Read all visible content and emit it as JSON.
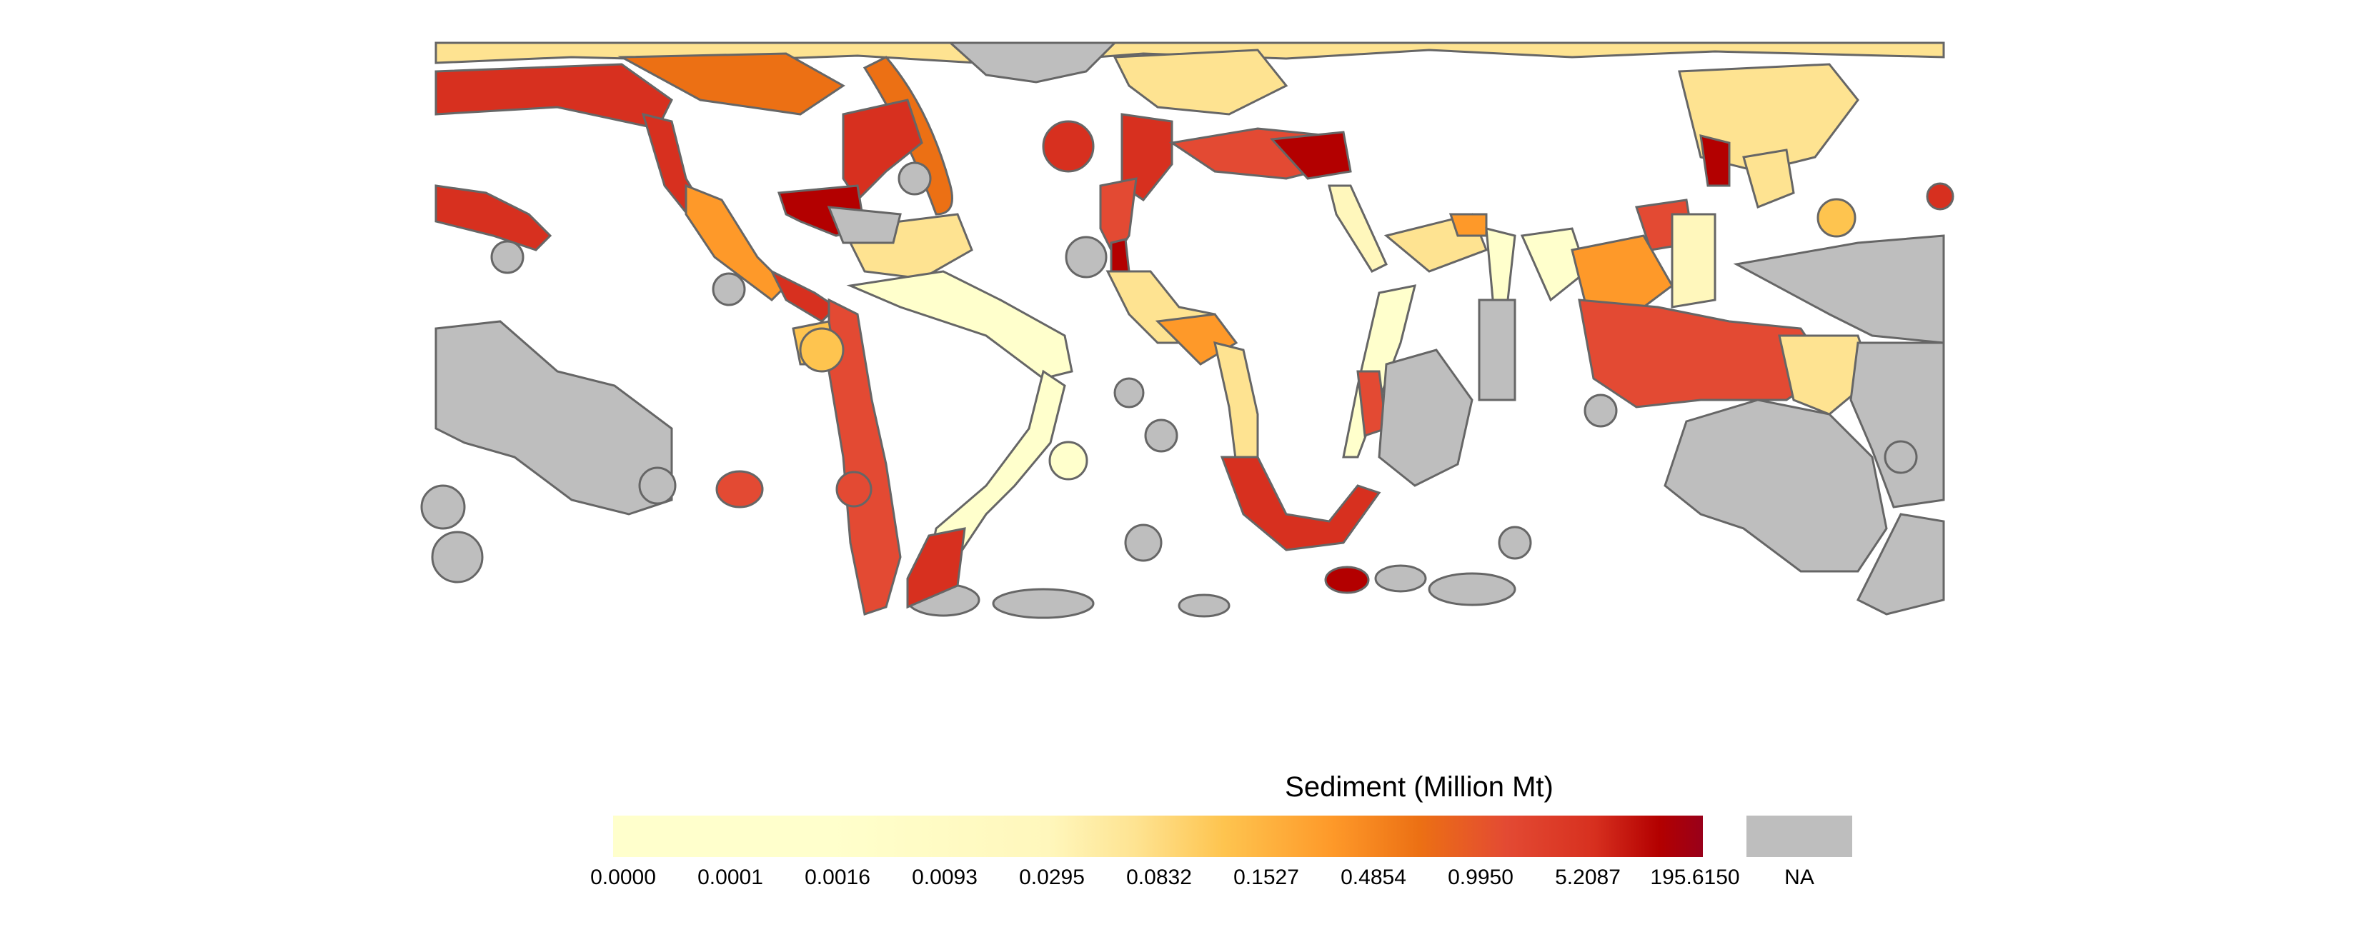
{
  "map": {
    "projection": "equirectangular world map",
    "region_outline_color": "#666666",
    "na_color": "#bebebe",
    "palette": [
      "#ffffcc",
      "#fff7bc",
      "#fee391",
      "#fec44f",
      "#fe9929",
      "#ec7014",
      "#e34a33",
      "#d7301f",
      "#b30000",
      "#99001a"
    ]
  },
  "legend": {
    "title": "Sediment (Million Mt)",
    "ticks": [
      "0.0000",
      "0.0001",
      "0.0016",
      "0.0093",
      "0.0295",
      "0.0832",
      "0.1527",
      "0.4854",
      "0.9950",
      "5.2087",
      "195.6150"
    ],
    "na_label": "NA"
  }
}
